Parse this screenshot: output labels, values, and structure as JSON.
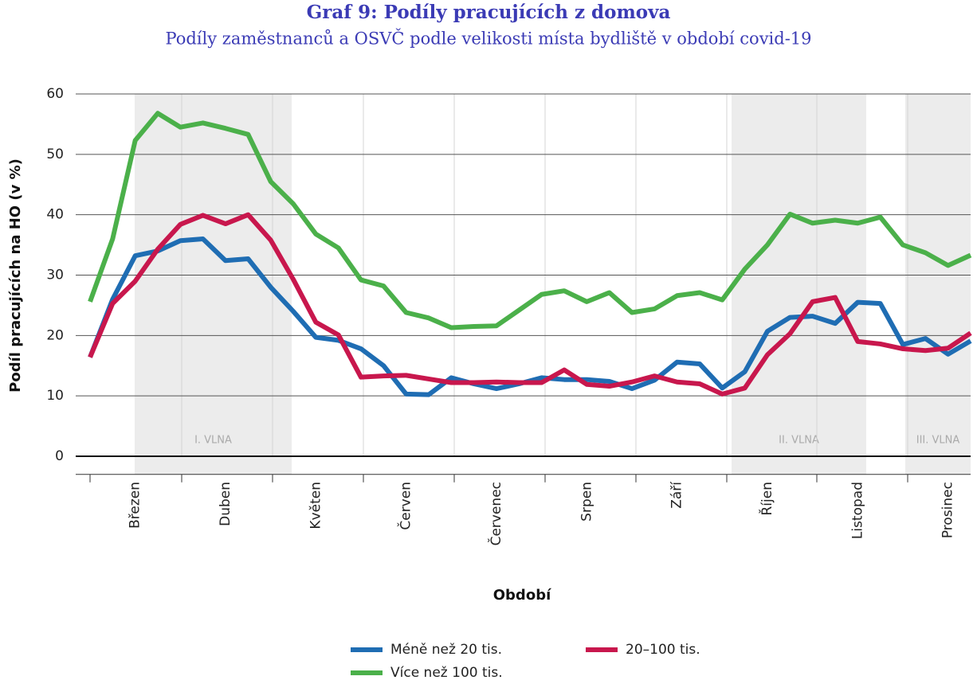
{
  "chart_data": {
    "type": "line",
    "title": "Graf 9: Podíly pracujících z domova",
    "subtitle": "Podíly zaměstnanců a OSVČ podle velikosti místa bydliště v období covid-19",
    "x_label": "Období",
    "y_label": "Podíl pracujících na HO (v %)",
    "categories": [
      null,
      null,
      "Březen",
      null,
      null,
      null,
      "Duben",
      null,
      null,
      null,
      "Květen",
      null,
      null,
      null,
      "Červen",
      null,
      null,
      null,
      "Červenec",
      null,
      null,
      null,
      "Srpen",
      null,
      null,
      null,
      "Září",
      null,
      null,
      null,
      "Říjen",
      null,
      null,
      null,
      "Listopad",
      null,
      null,
      null,
      "Prosinec",
      null
    ],
    "series": [
      {
        "name": "Méně než 20 tis.",
        "color": "#1f6db3",
        "values": [
          16.4,
          26,
          33.2,
          34,
          35.7,
          36,
          32.4,
          32.7,
          28,
          24,
          19.7,
          19.2,
          17.8,
          15,
          10.3,
          10.2,
          13,
          12,
          11.2,
          12,
          13,
          12.7,
          12.7,
          12.4,
          11.2,
          12.6,
          15.6,
          15.3,
          11.3,
          14,
          20.7,
          23,
          23.2,
          22,
          25.5,
          25.3,
          18.5,
          19.5,
          16.9,
          19.1
        ]
      },
      {
        "name": "20–100 tis.",
        "color": "#c8174d",
        "values": [
          16.4,
          25.3,
          29,
          34.3,
          38.4,
          39.9,
          38.5,
          40,
          35.8,
          29.3,
          22.2,
          20.1,
          13.1,
          13.3,
          13.4,
          12.8,
          12.2,
          12.2,
          12.3,
          12.2,
          12.2,
          14.3,
          11.9,
          11.6,
          12.3,
          13.3,
          12.3,
          12,
          10.3,
          11.3,
          16.8,
          20.3,
          25.6,
          26.3,
          19,
          18.6,
          17.8,
          17.5,
          17.9,
          20.4
        ]
      },
      {
        "name": "Více než 100 tis.",
        "color": "#4bb04a",
        "values": [
          25.6,
          36,
          52.3,
          56.8,
          54.5,
          55.2,
          54.3,
          53.3,
          45.5,
          41.8,
          36.8,
          34.5,
          29.2,
          28.2,
          23.8,
          22.9,
          21.3,
          21.5,
          21.6,
          24.2,
          26.8,
          27.4,
          25.6,
          27.1,
          23.8,
          24.4,
          26.6,
          27.1,
          25.9,
          31,
          35,
          40.1,
          38.6,
          39.1,
          38.6,
          39.6,
          35,
          33.7,
          31.6,
          33.3
        ]
      }
    ],
    "annotations": [
      "I. VLNA",
      "II. VLNA",
      "III. VLNA"
    ],
    "ylim": [
      -3,
      60
    ],
    "yticks": [
      0,
      10,
      20,
      30,
      40,
      50,
      60
    ],
    "grid": true
  }
}
